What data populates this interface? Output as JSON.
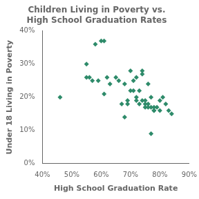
{
  "chart_data": {
    "type": "scatter",
    "title": "Children Living in Poverty vs.\nHigh School Graduation Rates",
    "x_label": "High School Graduation Rate",
    "y_label": "Under 18 Living in Poverty",
    "xlim": [
      0.4,
      0.9
    ],
    "ylim": [
      0.0,
      0.4
    ],
    "xticks": [
      {
        "value": 0.4,
        "label": "40%"
      },
      {
        "value": 0.5,
        "label": "50%"
      },
      {
        "value": 0.6,
        "label": "60%"
      },
      {
        "value": 0.7,
        "label": "70%"
      },
      {
        "value": 0.8,
        "label": "80%"
      },
      {
        "value": 0.9,
        "label": "90%"
      }
    ],
    "yticks": [
      {
        "value": 0.0,
        "label": "0%"
      },
      {
        "value": 0.1,
        "label": "10%"
      },
      {
        "value": 0.2,
        "label": "20%"
      },
      {
        "value": 0.3,
        "label": "30%"
      },
      {
        "value": 0.4,
        "label": "40%"
      }
    ],
    "color": "#2E8B6A",
    "marker": "diamond",
    "grid": false,
    "x": [
      0.46,
      0.55,
      0.55,
      0.56,
      0.57,
      0.58,
      0.59,
      0.6,
      0.61,
      0.61,
      0.62,
      0.63,
      0.65,
      0.66,
      0.67,
      0.68,
      0.68,
      0.69,
      0.69,
      0.7,
      0.7,
      0.71,
      0.71,
      0.72,
      0.72,
      0.72,
      0.73,
      0.73,
      0.74,
      0.74,
      0.74,
      0.75,
      0.75,
      0.75,
      0.76,
      0.76,
      0.76,
      0.77,
      0.77,
      0.77,
      0.78,
      0.78,
      0.78,
      0.79,
      0.8,
      0.8,
      0.81,
      0.82,
      0.83,
      0.84
    ],
    "values": [
      0.2,
      0.3,
      0.26,
      0.26,
      0.25,
      0.36,
      0.25,
      0.37,
      0.37,
      0.21,
      0.26,
      0.24,
      0.26,
      0.25,
      0.18,
      0.14,
      0.24,
      0.19,
      0.18,
      0.28,
      0.22,
      0.22,
      0.25,
      0.26,
      0.2,
      0.19,
      0.22,
      0.18,
      0.19,
      0.27,
      0.28,
      0.17,
      0.19,
      0.18,
      0.24,
      0.17,
      0.18,
      0.09,
      0.17,
      0.2,
      0.17,
      0.16,
      0.16,
      0.17,
      0.19,
      0.16,
      0.2,
      0.18,
      0.16,
      0.15
    ]
  }
}
